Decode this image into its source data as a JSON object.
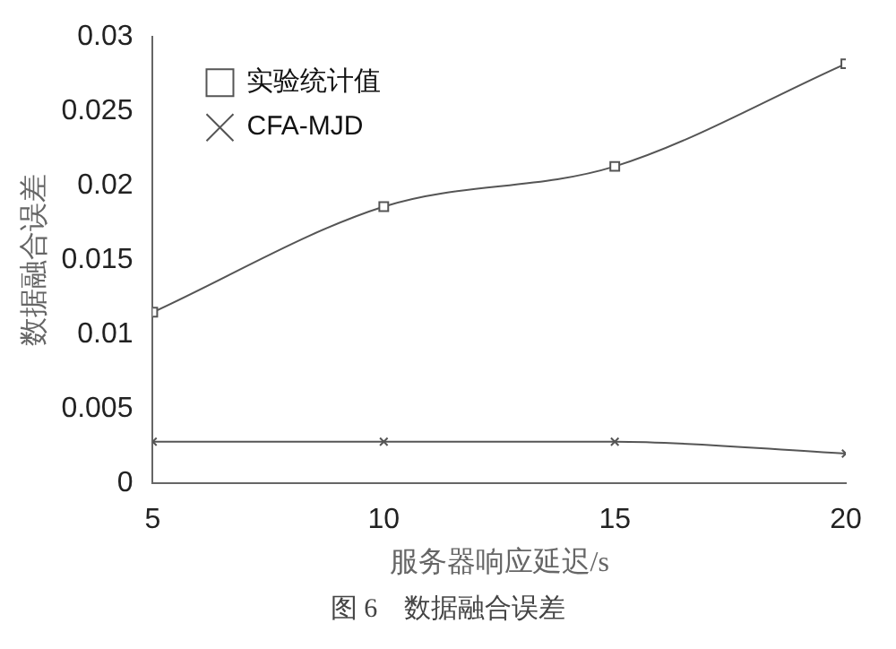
{
  "chart_data": {
    "type": "line",
    "xlabel": "服务器响应延迟/s",
    "ylabel": "数据融合误差",
    "x": [
      5,
      10,
      15,
      20
    ],
    "series": [
      {
        "name": "实验统计值",
        "color": "#555555",
        "marker": "square",
        "values": [
          0.0115,
          0.0186,
          0.0213,
          0.0282
        ]
      },
      {
        "name": "CFA-MJD",
        "color": "#555555",
        "marker": "cross",
        "values": [
          0.0028,
          0.0028,
          0.0028,
          0.002
        ]
      }
    ],
    "xlim": [
      5,
      20
    ],
    "xticks": [
      5,
      10,
      15,
      20
    ],
    "ylim": [
      0,
      0.03
    ],
    "yticks": [
      0,
      0.005,
      0.01,
      0.015,
      0.02,
      0.025,
      0.03
    ],
    "grid": false,
    "legend": "top left",
    "line_style": "solid",
    "annotations": [
      "图 6　数据融合误差"
    ]
  }
}
